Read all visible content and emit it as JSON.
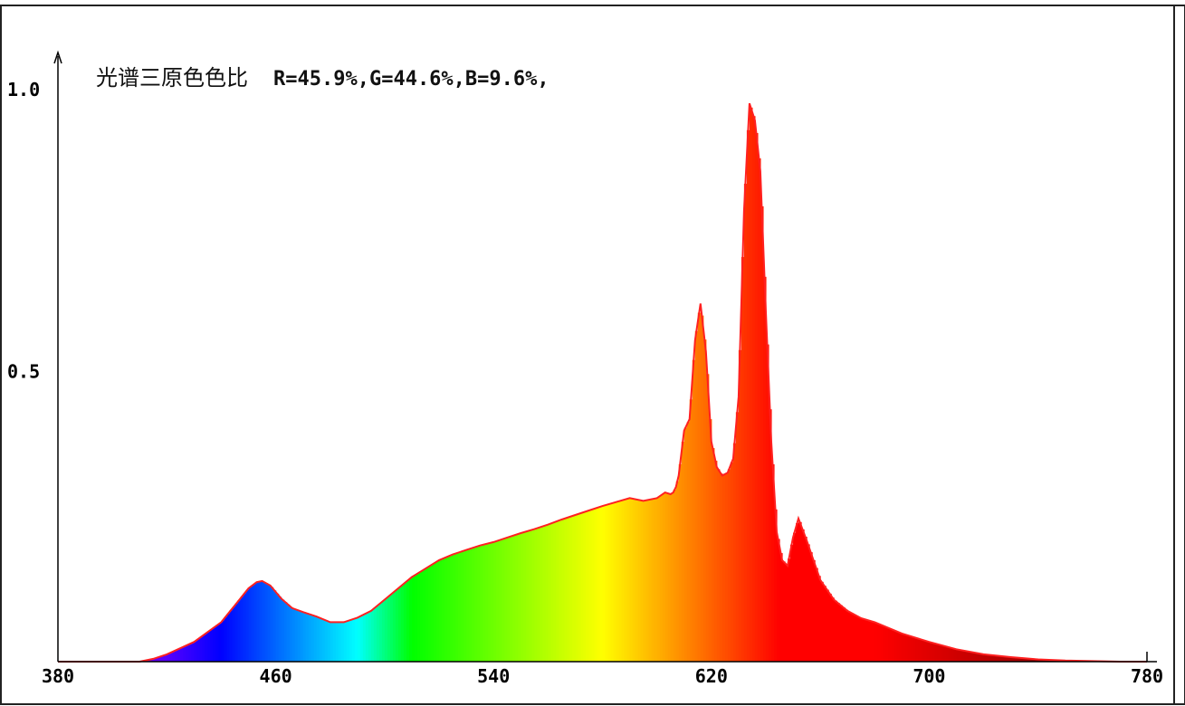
{
  "chart_data": {
    "type": "area",
    "title_label": "光谱三原色色比",
    "title_values": "R=45.9%,G=44.6%,B=9.6%,",
    "xlim": [
      380,
      780
    ],
    "ylim": [
      0,
      1.0
    ],
    "x_ticks": [
      "380",
      "460",
      "540",
      "620",
      "700",
      "780"
    ],
    "y_ticks": [
      "1.0",
      "0.5"
    ],
    "grid": false,
    "outline_color": "#ff2020",
    "series": [
      {
        "x": [
          380,
          410,
          415,
          420,
          430,
          440,
          445,
          450,
          453,
          455,
          458,
          462,
          466,
          470,
          475,
          480,
          485,
          490,
          495,
          500,
          505,
          510,
          515,
          520,
          525,
          530,
          535,
          540,
          545,
          550,
          555,
          560,
          565,
          570,
          575,
          580,
          585,
          590,
          595,
          600,
          603,
          605,
          606,
          607,
          608,
          610,
          612,
          614,
          616,
          618,
          620,
          622,
          624,
          626,
          628,
          630,
          632,
          634,
          636,
          638,
          640,
          642,
          644,
          646,
          648,
          650,
          652,
          655,
          660,
          665,
          670,
          675,
          680,
          690,
          700,
          710,
          720,
          730,
          740,
          750,
          760,
          770,
          775,
          780
        ],
        "y": [
          0,
          0,
          0.005,
          0.013,
          0.035,
          0.07,
          0.1,
          0.13,
          0.141,
          0.143,
          0.135,
          0.112,
          0.095,
          0.088,
          0.08,
          0.07,
          0.07,
          0.078,
          0.09,
          0.11,
          0.13,
          0.15,
          0.165,
          0.18,
          0.19,
          0.198,
          0.206,
          0.212,
          0.22,
          0.228,
          0.235,
          0.243,
          0.252,
          0.26,
          0.268,
          0.276,
          0.283,
          0.29,
          0.285,
          0.29,
          0.3,
          0.297,
          0.3,
          0.31,
          0.33,
          0.41,
          0.43,
          0.57,
          0.635,
          0.55,
          0.39,
          0.345,
          0.33,
          0.335,
          0.36,
          0.47,
          0.8,
          0.99,
          0.96,
          0.87,
          0.62,
          0.39,
          0.23,
          0.18,
          0.17,
          0.22,
          0.254,
          0.215,
          0.145,
          0.11,
          0.09,
          0.077,
          0.07,
          0.05,
          0.035,
          0.022,
          0.013,
          0.008,
          0.004,
          0.002,
          0.001,
          0,
          0,
          0
        ]
      }
    ]
  }
}
